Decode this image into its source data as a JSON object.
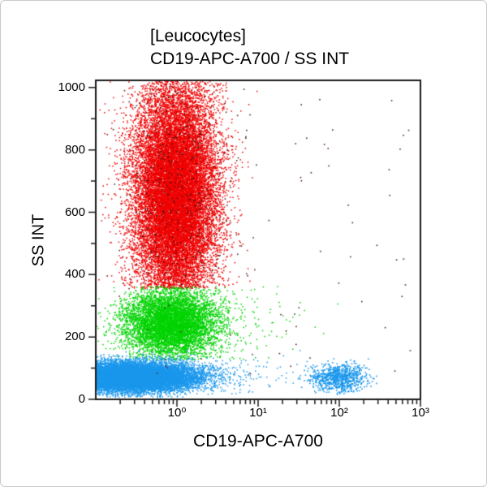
{
  "window": {
    "background": "#ffffff",
    "border_color": "#c9c9c9"
  },
  "chart_data": {
    "type": "scatter",
    "subtype": "flow-cytometry-dot-plot",
    "title": "[Leucocytes]",
    "subtitle": "CD19-APC-A700 / SS INT",
    "xlabel": "CD19-APC-A700",
    "ylabel": "SS INT",
    "x_scale": "log10",
    "x_decades": [
      -1,
      3
    ],
    "x_tick_labels": [
      {
        "label": "10⁰",
        "log10": 0
      },
      {
        "label": "10¹",
        "log10": 1
      },
      {
        "label": "10²",
        "log10": 2
      },
      {
        "label": "10³",
        "log10": 3
      }
    ],
    "y_scale": "linear",
    "y_range": [
      0,
      1023
    ],
    "y_major_ticks": [
      {
        "value": 0,
        "label": "0"
      },
      {
        "value": 200,
        "label": "200"
      },
      {
        "value": 400,
        "label": "400"
      },
      {
        "value": 600,
        "label": "600"
      },
      {
        "value": 800,
        "label": "800"
      },
      {
        "value": 1000,
        "label": "1000"
      }
    ],
    "y_minor_ticks": [
      100,
      300,
      500,
      700,
      900
    ],
    "frame_color": "#1a1a1a",
    "grid": "off",
    "legend": "none",
    "populations": [
      {
        "name": "granulocytes",
        "color": "#ee0000",
        "n": 21000,
        "x_log_mean": -0.02,
        "x_log_sd": 0.26,
        "y_mean": 660,
        "y_sd": 185,
        "y_min": 355,
        "y_max": 1023,
        "pile_top": true,
        "dot": 1.5,
        "summary": "dense red cloud, SS ~355 to >1000 (piles up at top), centered near x=10^0"
      },
      {
        "name": "granulocyte-dark-specks",
        "color": "#4a1010",
        "n": 420,
        "x_log_mean": -0.02,
        "x_log_sd": 0.31,
        "y_mean": 660,
        "y_sd": 210,
        "y_min": 355,
        "y_max": 1023,
        "pile_top": false,
        "dot": 1.5,
        "summary": "sparse dark maroon specks mixed through the red cloud"
      },
      {
        "name": "monocytes",
        "color": "#00d300",
        "n": 7000,
        "x_log_mean": -0.07,
        "x_log_sd": 0.29,
        "y_mean": 245,
        "y_sd": 55,
        "y_min": 126,
        "y_max": 362,
        "pile_top": false,
        "dot": 1.5,
        "summary": "green cloud, SS ~130-360, centered near x=10^0"
      },
      {
        "name": "monocytes-right-tail",
        "color": "#00d300",
        "n": 260,
        "x_log_mean": 0.45,
        "x_log_sd": 0.55,
        "y_mean": 240,
        "y_sd": 62,
        "y_min": 126,
        "y_max": 362,
        "pile_top": false,
        "dot": 1.5,
        "summary": "sparse green scatter extending toward 10^1.5"
      },
      {
        "name": "lymphocytes",
        "color": "#1a97ec",
        "n": 14000,
        "x_log_mean": -0.55,
        "x_log_sd": 0.4,
        "y_mean": 72,
        "y_sd": 24,
        "y_min": 6,
        "y_max": 162,
        "pile_top": false,
        "dot": 1.5,
        "summary": "dense blue band SS ~25-130 hugging left edge (piles up at axis minimum)"
      },
      {
        "name": "lymphocytes-right-tail",
        "color": "#1a97ec",
        "n": 260,
        "x_log_mean": 0.4,
        "x_log_sd": 0.55,
        "y_mean": 80,
        "y_sd": 30,
        "y_min": 6,
        "y_max": 170,
        "pile_top": false,
        "dot": 1.5,
        "summary": "sparse blue scatter between main lymphocyte cloud and CD19+ cluster"
      },
      {
        "name": "cd19-pos-b-lymphocytes",
        "color": "#1a97ec",
        "n": 850,
        "x_log_mean": 2.0,
        "x_log_sd": 0.17,
        "y_mean": 68,
        "y_sd": 22,
        "y_min": 15,
        "y_max": 180,
        "pile_top": false,
        "dot": 1.6,
        "summary": "small blue CD19-positive cluster centered at x=10^2, SS ~40-110"
      },
      {
        "name": "stray-events-maroon",
        "color": "#5a2020",
        "n": 60,
        "uniform": true,
        "x_log_range": [
          -0.9,
          2.9
        ],
        "y_range": [
          60,
          1010
        ],
        "dot": 1.6,
        "summary": "rare scattered events across plot"
      },
      {
        "name": "stray-events-dark",
        "color": "#333333",
        "n": 30,
        "uniform": true,
        "x_log_range": [
          -0.5,
          2.9
        ],
        "y_range": [
          120,
          1010
        ],
        "dot": 1.6,
        "summary": "rare dark scattered events, upper right region"
      }
    ]
  }
}
